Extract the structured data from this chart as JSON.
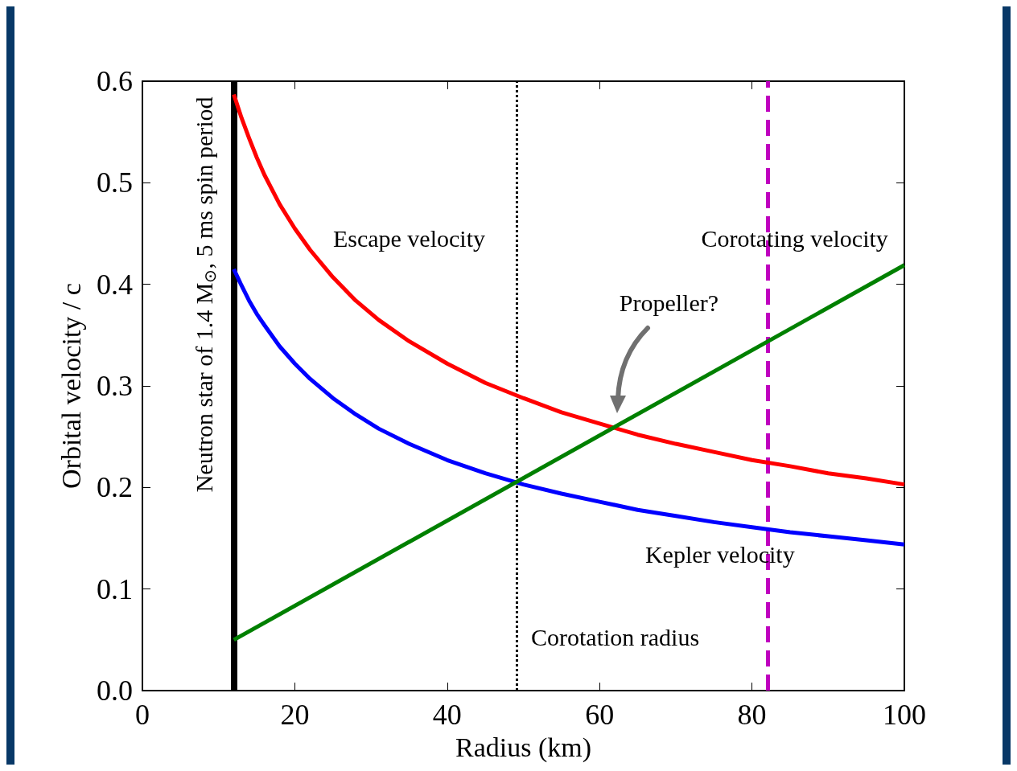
{
  "chart_data": {
    "type": "line",
    "xlabel": "Radius (km)",
    "ylabel": "Orbital velocity / c",
    "xlim": [
      0,
      100
    ],
    "xticks": [
      0,
      20,
      40,
      60,
      80,
      100
    ],
    "ylim": [
      0,
      0.6
    ],
    "yticks": [
      {
        "value": 0,
        "label": "0.0"
      },
      0.1,
      0.2,
      0.3,
      0.4,
      0.5,
      0.6
    ],
    "grid": false,
    "legend": false,
    "marker": "none",
    "line_style": "solid",
    "series": [
      {
        "name": "Escape velocity",
        "color": "#ff0000",
        "x": [
          12,
          13,
          14,
          15,
          16,
          18,
          20,
          22,
          25,
          28,
          31,
          35,
          40,
          45,
          50,
          55,
          60,
          65,
          70,
          75,
          80,
          85,
          90,
          95,
          100
        ],
        "values": [
          0.587,
          0.564,
          0.544,
          0.525,
          0.508,
          0.479,
          0.455,
          0.434,
          0.407,
          0.384,
          0.365,
          0.344,
          0.322,
          0.303,
          0.288,
          0.274,
          0.263,
          0.252,
          0.243,
          0.235,
          0.227,
          0.221,
          0.214,
          0.209,
          0.203
        ]
      },
      {
        "name": "Kepler velocity",
        "color": "#0000ff",
        "x": [
          12,
          13,
          14,
          15,
          16,
          18,
          20,
          22,
          25,
          28,
          31,
          35,
          40,
          45,
          50,
          55,
          60,
          65,
          70,
          75,
          80,
          85,
          90,
          95,
          100
        ],
        "values": [
          0.415,
          0.399,
          0.384,
          0.371,
          0.36,
          0.339,
          0.322,
          0.307,
          0.288,
          0.272,
          0.258,
          0.243,
          0.227,
          0.214,
          0.203,
          0.194,
          0.186,
          0.178,
          0.172,
          0.166,
          0.161,
          0.156,
          0.152,
          0.148,
          0.144
        ]
      },
      {
        "name": "Corotating velocity",
        "color": "#008000",
        "x": [
          12,
          100
        ],
        "values": [
          0.05,
          0.419
        ]
      }
    ],
    "ref_lines": [
      {
        "axis": "x",
        "value": 12,
        "label": "Neutron star of 1.4 M$_{⊙}$, 5 ms spin period",
        "color": "#000000",
        "line_style": "solid"
      },
      {
        "axis": "x",
        "value": 49.1,
        "label": "Corotation radius",
        "color": "#000000",
        "line_style": "dotted"
      },
      {
        "axis": "x",
        "value": 82.1,
        "color": "#bf00bf",
        "line_style": "dashed"
      }
    ],
    "annotations": [
      "Propeller?"
    ]
  }
}
